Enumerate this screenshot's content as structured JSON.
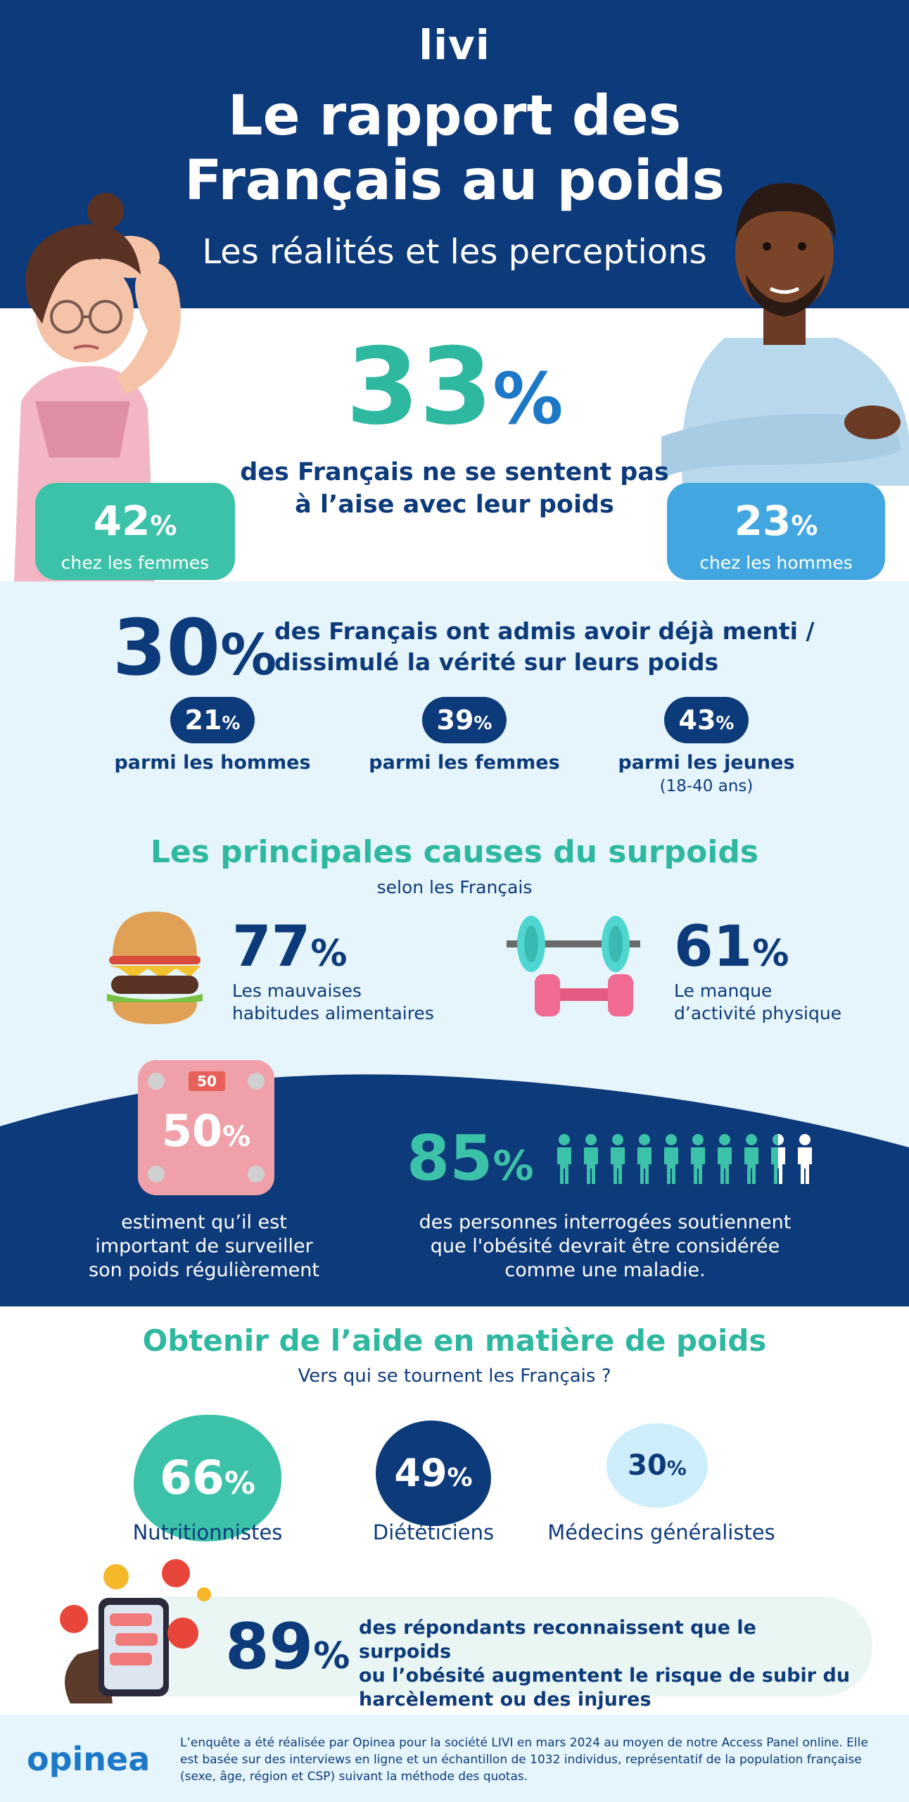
{
  "header": {
    "logo": "livi",
    "title_line1": "Le rapport des",
    "title_line2": "Français au poids",
    "subtitle": "Les réalités et les perceptions"
  },
  "comfort": {
    "value": "33",
    "pct": "%",
    "description": "des Français ne se sentent pas à l’aise avec leur poids",
    "women": {
      "value": "42",
      "pct": "%",
      "label": "chez les femmes"
    },
    "men": {
      "value": "23",
      "pct": "%",
      "label": "chez les hommes"
    }
  },
  "lying": {
    "value": "30",
    "pct": "%",
    "description_line1": "des Français ont admis avoir déjà menti /",
    "description_line2": "dissimulé la vérité sur leurs poids",
    "groups": [
      {
        "value": "21",
        "pct": "%",
        "label": "parmi les hommes",
        "sub": ""
      },
      {
        "value": "39",
        "pct": "%",
        "label": "parmi les femmes",
        "sub": ""
      },
      {
        "value": "43",
        "pct": "%",
        "label": "parmi les jeunes",
        "sub": "(18-40 ans)"
      }
    ]
  },
  "causes": {
    "title": "Les principales causes du surpoids",
    "subtitle": "selon les Français",
    "items": [
      {
        "value": "77",
        "pct": "%",
        "line1": "Les mauvaises",
        "line2": "habitudes alimentaires",
        "icon": "burger-icon"
      },
      {
        "value": "61",
        "pct": "%",
        "line1": "Le manque",
        "line2": "d’activité physique",
        "icon": "dumbbell-icon"
      }
    ]
  },
  "monitoring": {
    "scale_display": "50",
    "value": "50",
    "pct": "%",
    "line1": "estiment qu’il est",
    "line2": "important de surveiller",
    "line3": "son poids régulièrement"
  },
  "obesity": {
    "value": "85",
    "pct": "%",
    "people_total": 10,
    "people_highlighted": 8.5,
    "line1": "des personnes interrogées soutiennent",
    "line2": "que l'obésité devrait être considérée",
    "line3": "comme une maladie."
  },
  "help": {
    "title": "Obtenir de l’aide en matière de poids",
    "subtitle": "Vers qui se tournent les Français ?",
    "items": [
      {
        "value": "66",
        "pct": "%",
        "label": "Nutritionnistes"
      },
      {
        "value": "49",
        "pct": "%",
        "label": "Diététiciens"
      },
      {
        "value": "30",
        "pct": "%",
        "label": "Médecins généralistes"
      }
    ]
  },
  "harassment": {
    "value": "89",
    "pct": "%",
    "line1": "des répondants reconnaissent que le surpoids",
    "line2": "ou l’obésité augmentent le risque de subir du",
    "line3": "harcèlement ou des injures"
  },
  "footer": {
    "brand": "opinea",
    "line1": "L’enquête a été réalisée par Opinea pour la société LIVI en mars 2024 au moyen de notre Access Panel online. Elle",
    "line2": "est basée sur des interviews en ligne et un échantillon de 1032 individus, représentatif de la population française",
    "line3": "(sexe, âge, région et CSP) suivant la méthode des quotas."
  },
  "colors": {
    "navy": "#0d3a7a",
    "teal": "#3cc2a9",
    "blue": "#42a7e0",
    "light": "#e6f5fb",
    "pink": "#f0a0a8"
  }
}
